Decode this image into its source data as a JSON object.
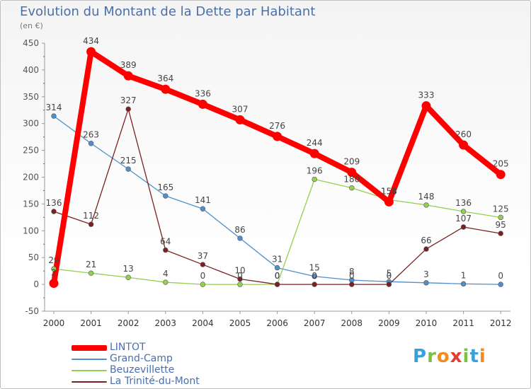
{
  "title": "Evolution du Montant de la Dette par Habitant",
  "subtitle": "(en €)",
  "logo": [
    "P",
    "r",
    "o",
    "x",
    "i",
    "t",
    "i"
  ],
  "logo_colors": [
    "#3aa0dc",
    "#7cc142",
    "#f28c1e",
    "#e63c2f",
    "#7cc142",
    "#3aa0dc",
    "#f28c1e"
  ],
  "chart_data": {
    "type": "line",
    "x": [
      "2000",
      "2001",
      "2002",
      "2003",
      "2004",
      "2005",
      "2006",
      "2007",
      "2008",
      "2009",
      "2010",
      "2011",
      "2012"
    ],
    "ylim": [
      -50,
      450
    ],
    "yticks": [
      -50,
      0,
      50,
      100,
      150,
      200,
      250,
      300,
      350,
      400,
      450
    ],
    "grid": false,
    "legend_position": "bottom-left",
    "series": [
      {
        "name": "LINTOT",
        "color": "#ff0000",
        "values": [
          2,
          434,
          389,
          364,
          336,
          307,
          276,
          244,
          209,
          154,
          333,
          260,
          205
        ],
        "labels": [
          "2",
          "434",
          "389",
          "364",
          "336",
          "307",
          "276",
          "244",
          "209",
          "154",
          "333",
          "260",
          "205"
        ]
      },
      {
        "name": "Grand-Camp",
        "color": "#4f8fcb",
        "values": [
          314,
          263,
          215,
          165,
          141,
          86,
          31,
          15,
          8,
          5,
          3,
          1,
          0
        ],
        "labels": [
          "314",
          "263",
          "215",
          "165",
          "141",
          "86",
          "31",
          "15",
          "8",
          "5",
          "3",
          "1",
          "0"
        ]
      },
      {
        "name": "Beuzevillette",
        "color": "#92d050",
        "values": [
          29,
          21,
          13,
          4,
          0,
          0,
          0,
          196,
          180,
          158,
          148,
          136,
          125
        ],
        "labels": [
          "29",
          "21",
          "13",
          "4",
          "0",
          "0",
          "0",
          "196",
          "180",
          "158",
          "148",
          "136",
          "125"
        ]
      },
      {
        "name": "La Trinité-du-Mont",
        "color": "#7b2020",
        "values": [
          136,
          112,
          327,
          64,
          37,
          10,
          0,
          0,
          0,
          0,
          66,
          107,
          95
        ],
        "labels": [
          "136",
          "112",
          "327",
          "64",
          "37",
          "10",
          "0",
          "0",
          "0",
          "0",
          "66",
          "107",
          "95"
        ]
      }
    ]
  }
}
